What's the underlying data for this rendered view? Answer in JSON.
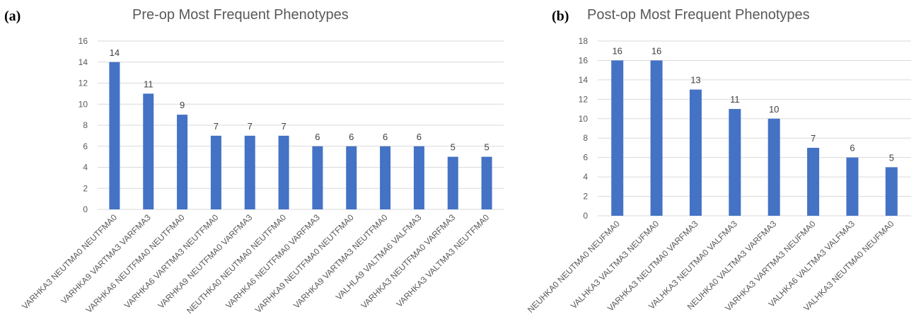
{
  "chart_data": [
    {
      "type": "bar",
      "panel_label": "(a)",
      "title": "Pre-op Most Frequent Phenotypes",
      "categories": [
        "VARHKA3 NEUTMA0 NEUTFMA0",
        "VARHKA9 VARTMA3 VARFMA3",
        "VARHKA6 NEUTFMA0 NEUTFMA0",
        "VARHKA6 VARTMA3 NEUTFMA0",
        "VARHKA9 NEUTFMA0 VARFMA3",
        "NEUTHKA0 NEUTMA0 NEUTFMA0",
        "VARHKA6 NEUTFMA0 VARFMA3",
        "VARHKA9 NEUTFMA0 NEUTFMA0",
        "VARHKA9 VARTMA3 NEUTFMA0",
        "VALHLA9 VALTMA6 VALFMA3",
        "VARHKA3 NEUTFMA0 VARFMA3",
        "VARHKA3 VALTMA3 NEUTFMA0"
      ],
      "values": [
        14,
        11,
        9,
        7,
        7,
        7,
        6,
        6,
        6,
        6,
        5,
        5
      ],
      "ylim": [
        0,
        16
      ],
      "yticks": [
        0,
        2,
        4,
        6,
        8,
        10,
        12,
        14,
        16
      ],
      "grid": true,
      "bar_color": "#4472C4"
    },
    {
      "type": "bar",
      "panel_label": "(b)",
      "title": "Post-op Most Frequent Phenotypes",
      "categories": [
        "NEUHKA0 NEUTMA0 NEUFMA0",
        "VALHKA3 VALTMA3 NEUFMA0",
        "VARHKA3 NEUTMA0 VARFMA3",
        "VALHKA3 NEUTMA0 VALFMA3",
        "NEUHKA0 VALTMA3 VARFMA3",
        "VARHKA3 VARTMA3 NEUFMA0",
        "VALHKA6 VALTMA3 VALFMA3",
        "VALHKA3 NEUTMA0 NEUFMA0"
      ],
      "values": [
        16,
        16,
        13,
        11,
        10,
        7,
        6,
        5
      ],
      "ylim": [
        0,
        18
      ],
      "yticks": [
        0,
        2,
        4,
        6,
        8,
        10,
        12,
        14,
        16,
        18
      ],
      "grid": true,
      "bar_color": "#4472C4"
    }
  ]
}
